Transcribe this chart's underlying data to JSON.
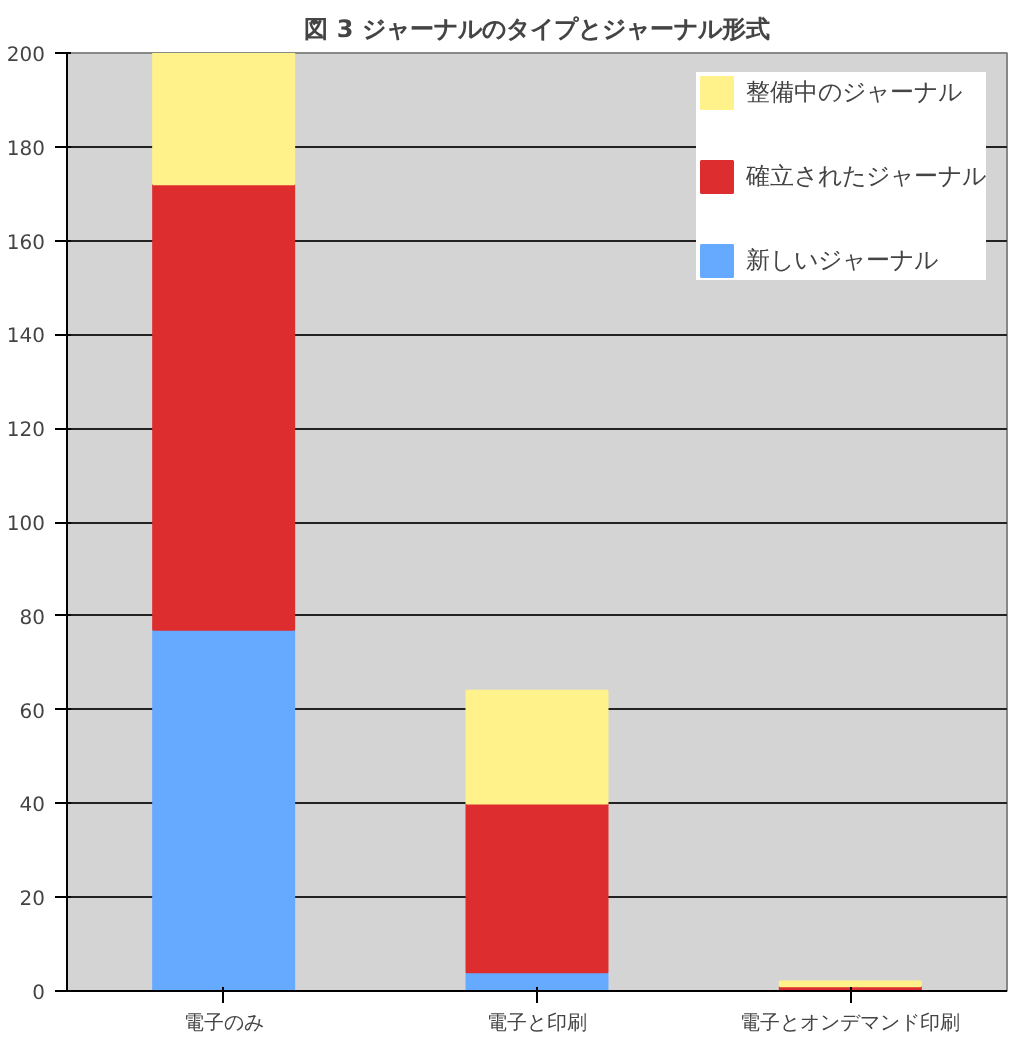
{
  "chart_data": {
    "type": "bar",
    "title": "図 3 ジャーナルのタイプとジャーナル形式",
    "stacked": true,
    "categories": [
      "電子のみ",
      "電子と印刷",
      "電子とオンデマンド印刷"
    ],
    "series": [
      {
        "name": "新しいジャーナル",
        "color": "#66aaff",
        "values": [
          77,
          4,
          0
        ]
      },
      {
        "name": "確立されたジャーナル",
        "color": "#dd2d2f",
        "values": [
          95,
          36,
          1
        ]
      },
      {
        "name": "整備中のジャーナル",
        "color": "#fff28a",
        "values": [
          28,
          24,
          1
        ]
      }
    ],
    "ylim": [
      0,
      200
    ],
    "yticks": [
      0,
      20,
      40,
      60,
      80,
      100,
      120,
      140,
      160,
      180,
      200
    ],
    "grid": "y",
    "legend": "top right"
  }
}
